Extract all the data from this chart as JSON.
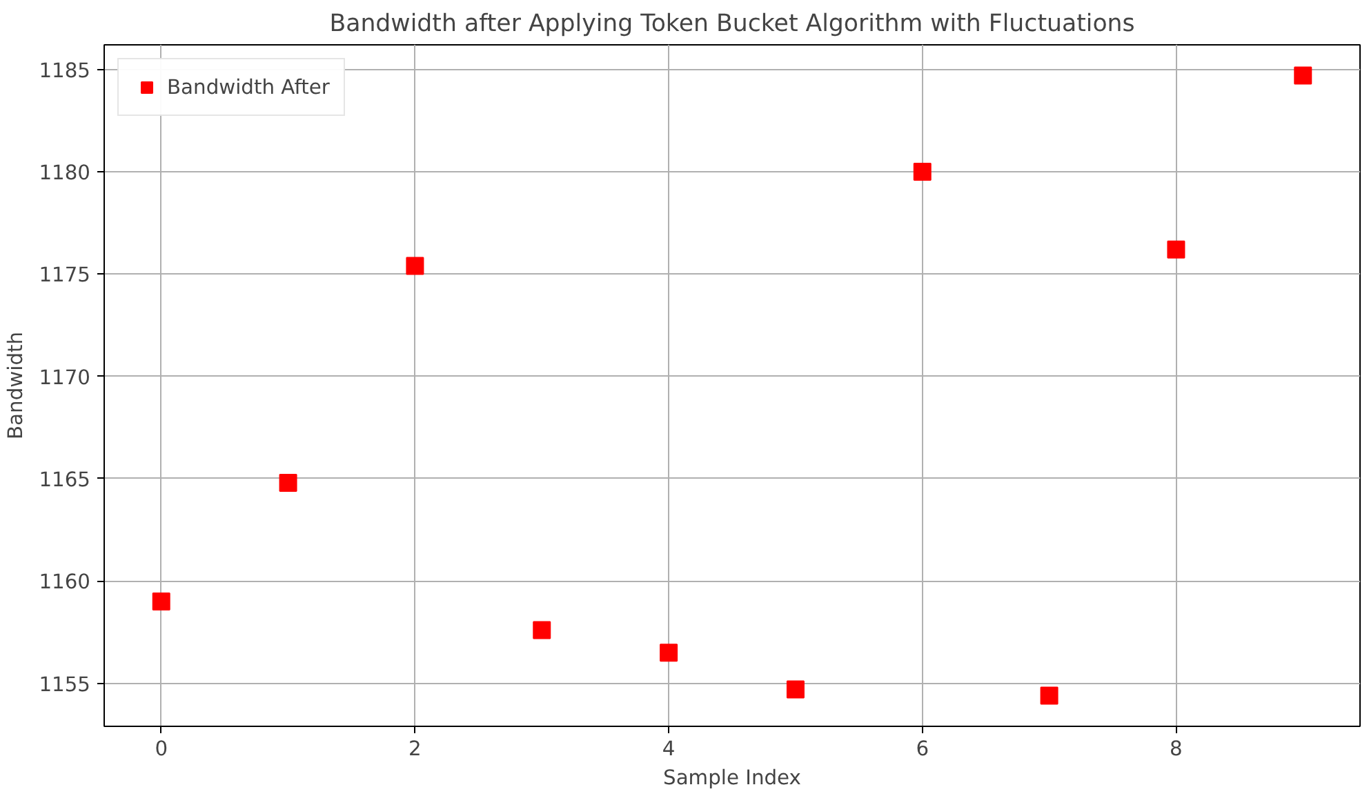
{
  "chart_data": {
    "type": "scatter",
    "title": "Bandwidth after Applying Token Bucket Algorithm with Fluctuations",
    "xlabel": "Sample Index",
    "ylabel": "Bandwidth",
    "x": [
      0,
      1,
      2,
      3,
      4,
      5,
      6,
      7,
      8,
      9
    ],
    "series": [
      {
        "name": "Bandwidth After",
        "color": "#ff0000",
        "values": [
          1159.0,
          1164.8,
          1175.4,
          1157.6,
          1156.5,
          1154.7,
          1180.0,
          1154.4,
          1176.2,
          1184.7
        ]
      }
    ],
    "xlim": [
      -0.45,
      9.45
    ],
    "ylim": [
      1152.9,
      1186.2
    ],
    "xticks": [
      0,
      2,
      4,
      6,
      8
    ],
    "yticks": [
      1155,
      1160,
      1165,
      1170,
      1175,
      1180,
      1185
    ],
    "grid": true,
    "legend": "top left",
    "marker": "square"
  }
}
